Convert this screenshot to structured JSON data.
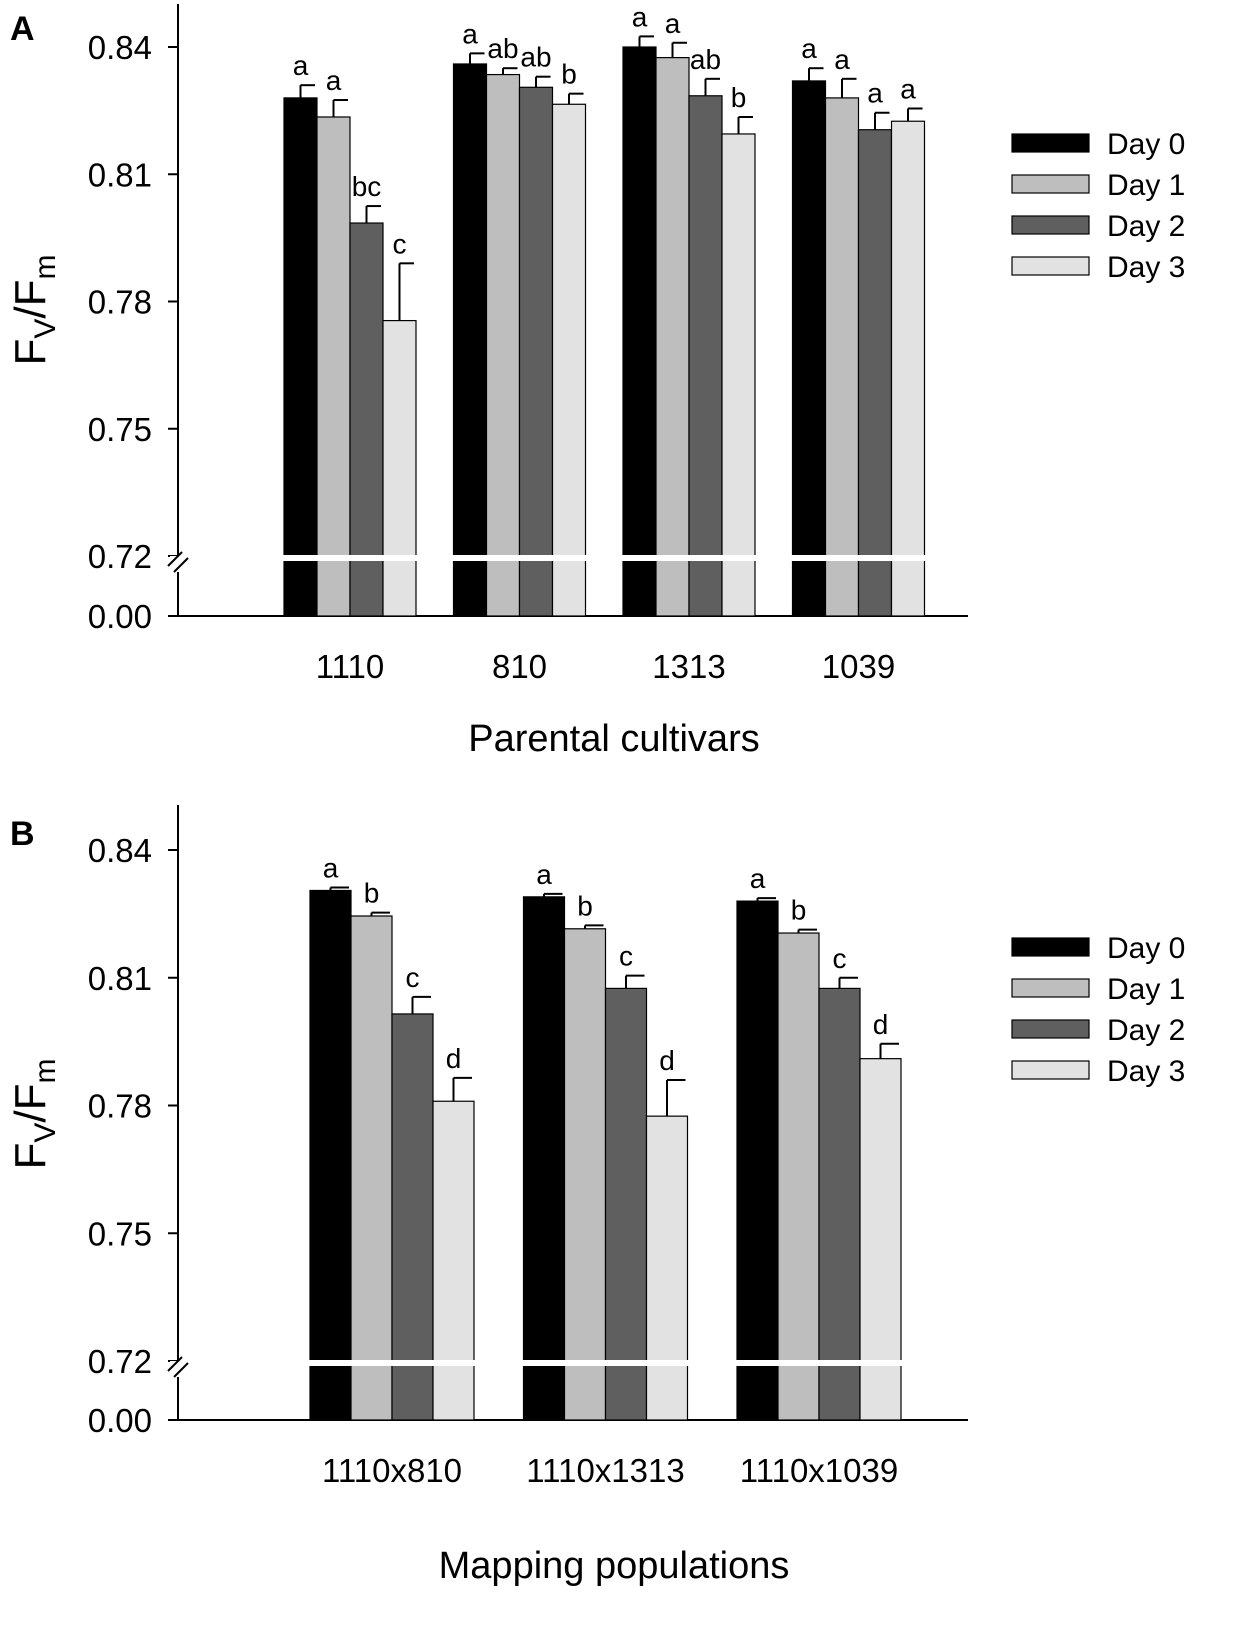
{
  "series_colors": {
    "Day 0": "#000000",
    "Day 1": "#bebebe",
    "Day 2": "#5f5f5f",
    "Day 3": "#e2e2e2"
  },
  "ylabel": {
    "main": "F",
    "sub": "V",
    "slash": "/F",
    "sub2": "m"
  },
  "chart_data": [
    {
      "type": "bar",
      "panel": "A",
      "title": "",
      "xlabel": "Parental cultivars",
      "ylabel": "Fv/Fm",
      "categories": [
        "1110",
        "810",
        "1313",
        "1039"
      ],
      "yticks": [
        "0.00",
        "0.72",
        "0.75",
        "0.78",
        "0.81",
        "0.84"
      ],
      "ylim": [
        0.72,
        0.85
      ],
      "axis_break": "between 0.00 and 0.72",
      "legend": [
        "Day 0",
        "Day 1",
        "Day 2",
        "Day 3"
      ],
      "legend_position": "right",
      "series": [
        {
          "name": "Day 0",
          "values": [
            0.828,
            0.836,
            0.84,
            0.832
          ],
          "errors": [
            0.003,
            0.0025,
            0.0025,
            0.003
          ],
          "letters": [
            "a",
            "a",
            "a",
            "a"
          ]
        },
        {
          "name": "Day 1",
          "values": [
            0.8235,
            0.8335,
            0.8375,
            0.828
          ],
          "errors": [
            0.004,
            0.0015,
            0.0035,
            0.0045
          ],
          "letters": [
            "a",
            "ab",
            "a",
            "a"
          ]
        },
        {
          "name": "Day 2",
          "values": [
            0.7985,
            0.8305,
            0.8285,
            0.8205
          ],
          "errors": [
            0.004,
            0.0025,
            0.004,
            0.004
          ],
          "letters": [
            "bc",
            "ab",
            "ab",
            "a"
          ]
        },
        {
          "name": "Day 3",
          "values": [
            0.7755,
            0.8265,
            0.8195,
            0.8225
          ],
          "errors": [
            0.0135,
            0.0025,
            0.004,
            0.003
          ],
          "letters": [
            "c",
            "b",
            "b",
            "a"
          ]
        }
      ]
    },
    {
      "type": "bar",
      "panel": "B",
      "title": "",
      "xlabel": "Mapping populations",
      "ylabel": "Fv/Fm",
      "categories": [
        "1110x810",
        "1110x1313",
        "1110x1039"
      ],
      "yticks": [
        "0.00",
        "0.72",
        "0.75",
        "0.78",
        "0.81",
        "0.84"
      ],
      "ylim": [
        0.72,
        0.85
      ],
      "axis_break": "between 0.00 and 0.72",
      "legend": [
        "Day 0",
        "Day 1",
        "Day 2",
        "Day 3"
      ],
      "legend_position": "right",
      "series": [
        {
          "name": "Day 0",
          "values": [
            0.8305,
            0.829,
            0.828
          ],
          "errors": [
            0.0007,
            0.0007,
            0.0007
          ],
          "letters": [
            "a",
            "a",
            "a"
          ]
        },
        {
          "name": "Day 1",
          "values": [
            0.8245,
            0.8215,
            0.8205
          ],
          "errors": [
            0.0008,
            0.0008,
            0.0008
          ],
          "letters": [
            "b",
            "b",
            "b"
          ]
        },
        {
          "name": "Day 2",
          "values": [
            0.8015,
            0.8075,
            0.8075
          ],
          "errors": [
            0.004,
            0.003,
            0.0025
          ],
          "letters": [
            "c",
            "c",
            "c"
          ]
        },
        {
          "name": "Day 3",
          "values": [
            0.781,
            0.7775,
            0.791
          ],
          "errors": [
            0.0055,
            0.0085,
            0.0035
          ],
          "letters": [
            "d",
            "d",
            "d"
          ]
        }
      ]
    }
  ]
}
